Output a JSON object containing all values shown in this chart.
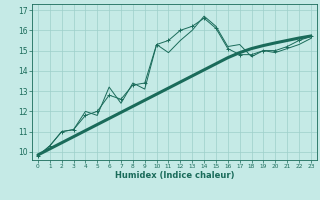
{
  "title": "",
  "xlabel": "Humidex (Indice chaleur)",
  "ylabel": "",
  "background_color": "#c5eae6",
  "grid_color": "#9ecfca",
  "line_color": "#1a6b5a",
  "xlim": [
    -0.5,
    23.5
  ],
  "ylim": [
    9.6,
    17.3
  ],
  "yticks": [
    10,
    11,
    12,
    13,
    14,
    15,
    16,
    17
  ],
  "xticks": [
    0,
    1,
    2,
    3,
    4,
    5,
    6,
    7,
    8,
    9,
    10,
    11,
    12,
    13,
    14,
    15,
    16,
    17,
    18,
    19,
    20,
    21,
    22,
    23
  ],
  "x": [
    0,
    1,
    2,
    3,
    4,
    5,
    6,
    7,
    8,
    9,
    10,
    11,
    12,
    13,
    14,
    15,
    16,
    17,
    18,
    19,
    20,
    21,
    22,
    23
  ],
  "y_main": [
    9.8,
    10.3,
    11.0,
    11.1,
    11.8,
    12.0,
    12.8,
    12.6,
    13.3,
    13.4,
    15.3,
    15.5,
    16.0,
    16.2,
    16.6,
    16.1,
    15.1,
    14.8,
    14.8,
    15.0,
    15.0,
    15.2,
    15.5,
    15.7
  ],
  "y_trend": [
    9.85,
    10.15,
    10.45,
    10.75,
    11.05,
    11.35,
    11.65,
    11.95,
    12.25,
    12.55,
    12.85,
    13.15,
    13.45,
    13.75,
    14.05,
    14.35,
    14.65,
    14.9,
    15.1,
    15.25,
    15.38,
    15.5,
    15.62,
    15.72
  ],
  "y_line2": [
    9.8,
    10.3,
    11.0,
    11.1,
    12.0,
    11.8,
    13.2,
    12.4,
    13.4,
    13.1,
    15.3,
    14.9,
    15.5,
    16.0,
    16.7,
    16.2,
    15.2,
    15.3,
    14.7,
    15.0,
    14.9,
    15.1,
    15.3,
    15.6
  ],
  "xlabel_fontsize": 6,
  "ytick_fontsize": 5.5,
  "xtick_fontsize": 4.2
}
